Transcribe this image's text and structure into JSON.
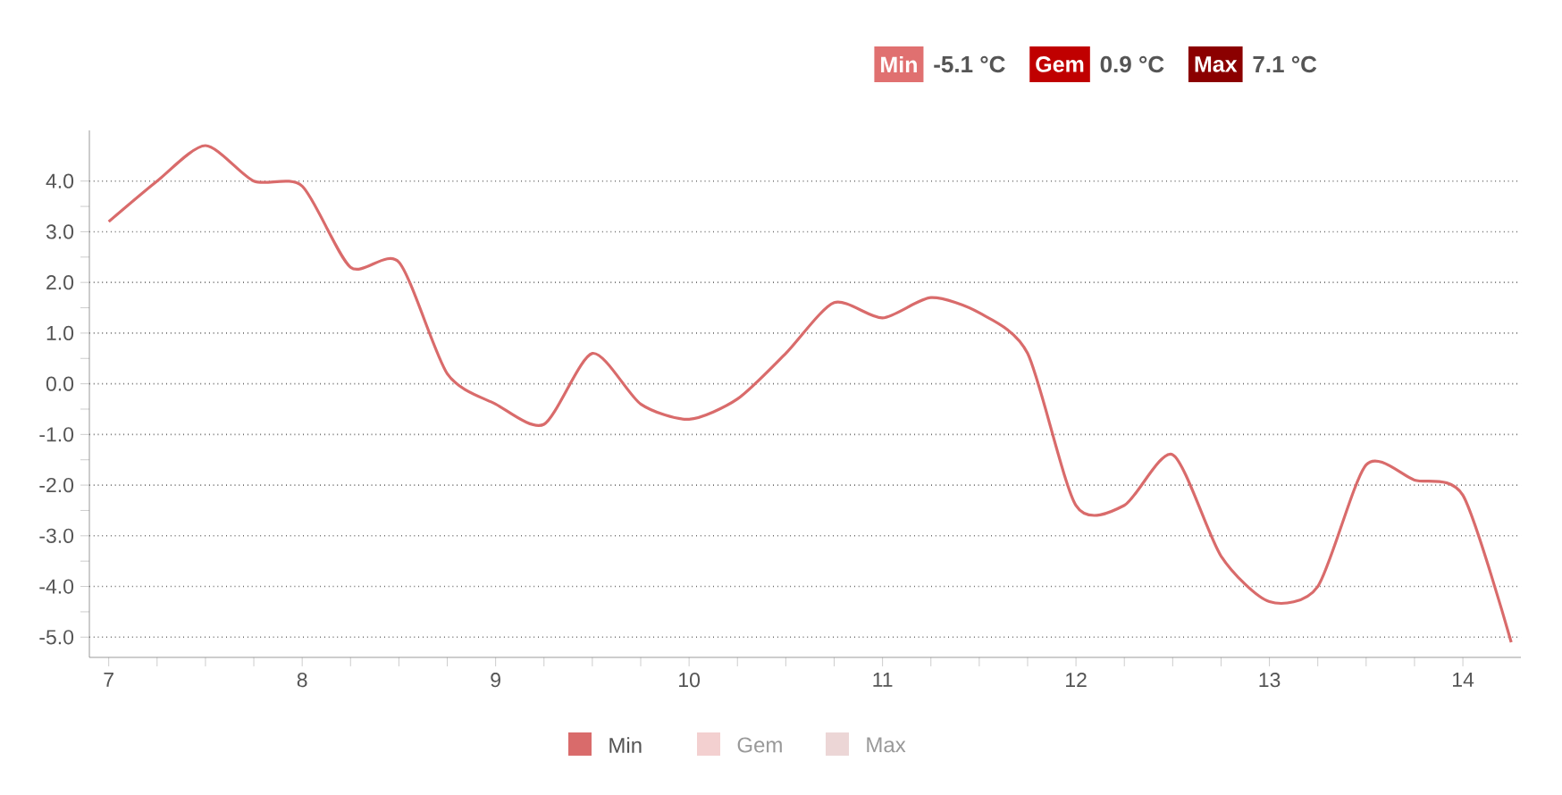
{
  "chart_data": {
    "type": "line",
    "annotations": [
      "Min",
      "-5.1 °C",
      "Gem",
      "0.9 °C",
      "Max",
      "7.1 °C"
    ],
    "x": [
      7,
      7.25,
      7.5,
      7.75,
      8,
      8.25,
      8.5,
      8.75,
      9,
      9.25,
      9.5,
      9.75,
      10,
      10.25,
      10.5,
      10.75,
      11,
      11.25,
      11.5,
      11.75,
      12,
      12.25,
      12.5,
      12.75,
      13,
      13.25,
      13.5,
      13.75,
      14,
      14.25
    ],
    "series": [
      {
        "name": "Min",
        "color": "#d96b6b",
        "values": [
          3.2,
          4.0,
          4.7,
          4.0,
          3.9,
          2.3,
          2.4,
          0.2,
          -0.4,
          -0.8,
          0.6,
          -0.4,
          -0.7,
          -0.3,
          0.6,
          1.6,
          1.3,
          1.7,
          1.4,
          0.6,
          -2.4,
          -2.4,
          -1.4,
          -3.4,
          -4.3,
          -4.0,
          -1.6,
          -1.9,
          -2.2,
          -5.1
        ]
      },
      {
        "name": "Gem",
        "color": "#f3d0d0",
        "values": [
          null,
          null,
          null,
          null,
          null,
          null,
          null,
          null,
          null,
          null,
          null,
          null,
          null,
          null,
          null,
          null,
          null,
          null,
          null,
          null,
          null,
          null,
          null,
          null,
          null,
          null,
          null,
          null,
          null,
          null
        ]
      },
      {
        "name": "Max",
        "color": "#ecd6d6",
        "values": [
          null,
          null,
          null,
          null,
          null,
          null,
          null,
          null,
          null,
          null,
          null,
          null,
          null,
          null,
          null,
          null,
          null,
          null,
          null,
          null,
          null,
          null,
          null,
          null,
          null,
          null,
          null,
          null,
          null,
          null
        ]
      }
    ],
    "xlim": [
      6.9,
      14.3
    ],
    "xticks": [
      7,
      8,
      9,
      10,
      11,
      12,
      13,
      14
    ],
    "ylim": [
      -5.4,
      5.0
    ],
    "yticks": [
      {
        "value": -5,
        "label": "-5.0"
      },
      {
        "value": -4,
        "label": "-4.0"
      },
      {
        "value": -3,
        "label": "-3.0"
      },
      {
        "value": -2,
        "label": "-2.0"
      },
      {
        "value": -1,
        "label": "-1.0"
      },
      {
        "value": 0,
        "label": "0.0"
      },
      {
        "value": 1,
        "label": "1.0"
      },
      {
        "value": 2,
        "label": "2.0"
      },
      {
        "value": 3,
        "label": "3.0"
      },
      {
        "value": 4,
        "label": "4.0"
      }
    ],
    "grid": "y",
    "legend": "bottom",
    "marker": "none",
    "line_style": "solid"
  }
}
